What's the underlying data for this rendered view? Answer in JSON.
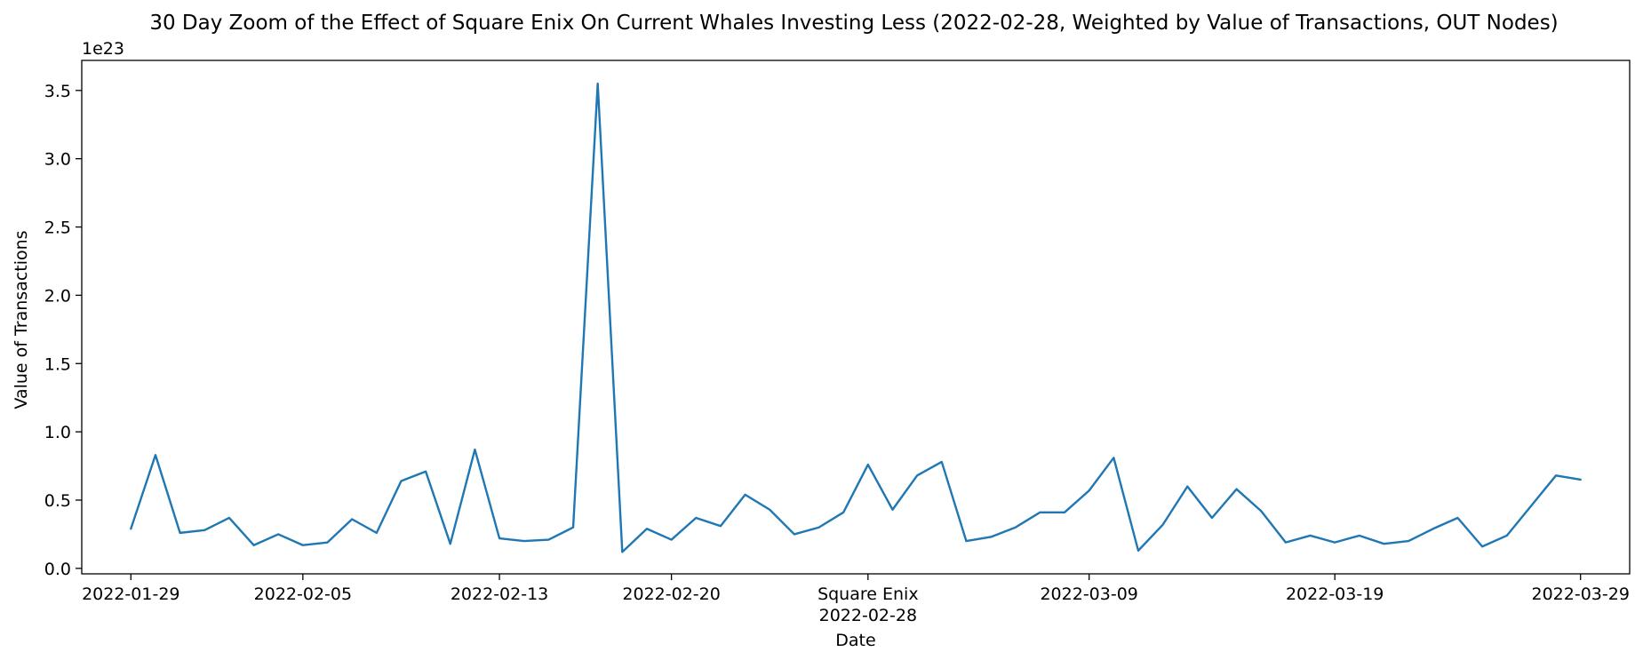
{
  "chart_data": {
    "type": "line",
    "title": "30 Day Zoom of the Effect of Square Enix On Current Whales Investing Less (2022-02-28, Weighted by Value of Transactions, OUT Nodes)",
    "xlabel": "Date",
    "ylabel": "Value of Transactions",
    "y_offset_label": "1e23",
    "y_scale": 1e+23,
    "xlim": [
      "2022-01-27",
      "2022-03-31"
    ],
    "ylim": [
      -0.04,
      3.72
    ],
    "yticks": [
      0.0,
      0.5,
      1.0,
      1.5,
      2.0,
      2.5,
      3.0,
      3.5
    ],
    "ytick_labels": [
      "0.0",
      "0.5",
      "1.0",
      "1.5",
      "2.0",
      "2.5",
      "3.0",
      "3.5"
    ],
    "xticks": [
      {
        "date": "2022-01-29",
        "label": "2022-01-29"
      },
      {
        "date": "2022-02-05",
        "label": "2022-02-05"
      },
      {
        "date": "2022-02-13",
        "label": "2022-02-13"
      },
      {
        "date": "2022-02-20",
        "label": "2022-02-20"
      },
      {
        "date": "2022-02-28",
        "label": "2022-02-28"
      },
      {
        "date": "2022-03-09",
        "label": "2022-03-09"
      },
      {
        "date": "2022-03-19",
        "label": "2022-03-19"
      },
      {
        "date": "2022-03-29",
        "label": "2022-03-29"
      }
    ],
    "event": {
      "date": "2022-02-28",
      "label": "Square Enix"
    },
    "grid": false,
    "series": [
      {
        "color": "#1f77b4",
        "x": [
          "2022-01-29",
          "2022-01-30",
          "2022-01-31",
          "2022-02-01",
          "2022-02-02",
          "2022-02-03",
          "2022-02-04",
          "2022-02-05",
          "2022-02-06",
          "2022-02-07",
          "2022-02-08",
          "2022-02-09",
          "2022-02-10",
          "2022-02-11",
          "2022-02-12",
          "2022-02-13",
          "2022-02-14",
          "2022-02-15",
          "2022-02-16",
          "2022-02-17",
          "2022-02-18",
          "2022-02-19",
          "2022-02-20",
          "2022-02-21",
          "2022-02-22",
          "2022-02-23",
          "2022-02-24",
          "2022-02-25",
          "2022-02-26",
          "2022-02-27",
          "2022-02-28",
          "2022-03-01",
          "2022-03-02",
          "2022-03-03",
          "2022-03-04",
          "2022-03-05",
          "2022-03-06",
          "2022-03-07",
          "2022-03-08",
          "2022-03-09",
          "2022-03-10",
          "2022-03-11",
          "2022-03-12",
          "2022-03-13",
          "2022-03-14",
          "2022-03-15",
          "2022-03-16",
          "2022-03-17",
          "2022-03-18",
          "2022-03-19",
          "2022-03-20",
          "2022-03-21",
          "2022-03-22",
          "2022-03-23",
          "2022-03-24",
          "2022-03-25",
          "2022-03-26",
          "2022-03-27",
          "2022-03-28",
          "2022-03-29"
        ],
        "values": [
          0.29,
          0.83,
          0.26,
          0.28,
          0.37,
          0.17,
          0.25,
          0.17,
          0.19,
          0.36,
          0.26,
          0.64,
          0.71,
          0.18,
          0.87,
          0.22,
          0.2,
          0.21,
          0.3,
          3.55,
          0.12,
          0.29,
          0.21,
          0.37,
          0.31,
          0.54,
          0.43,
          0.25,
          0.3,
          0.41,
          0.76,
          0.43,
          0.68,
          0.78,
          0.2,
          0.23,
          0.3,
          0.41,
          0.41,
          0.57,
          0.81,
          0.13,
          0.32,
          0.6,
          0.37,
          0.58,
          0.42,
          0.19,
          0.24,
          0.19,
          0.24,
          0.18,
          0.2,
          0.29,
          0.37,
          0.16,
          0.24,
          0.46,
          0.68,
          0.65
        ]
      }
    ]
  }
}
